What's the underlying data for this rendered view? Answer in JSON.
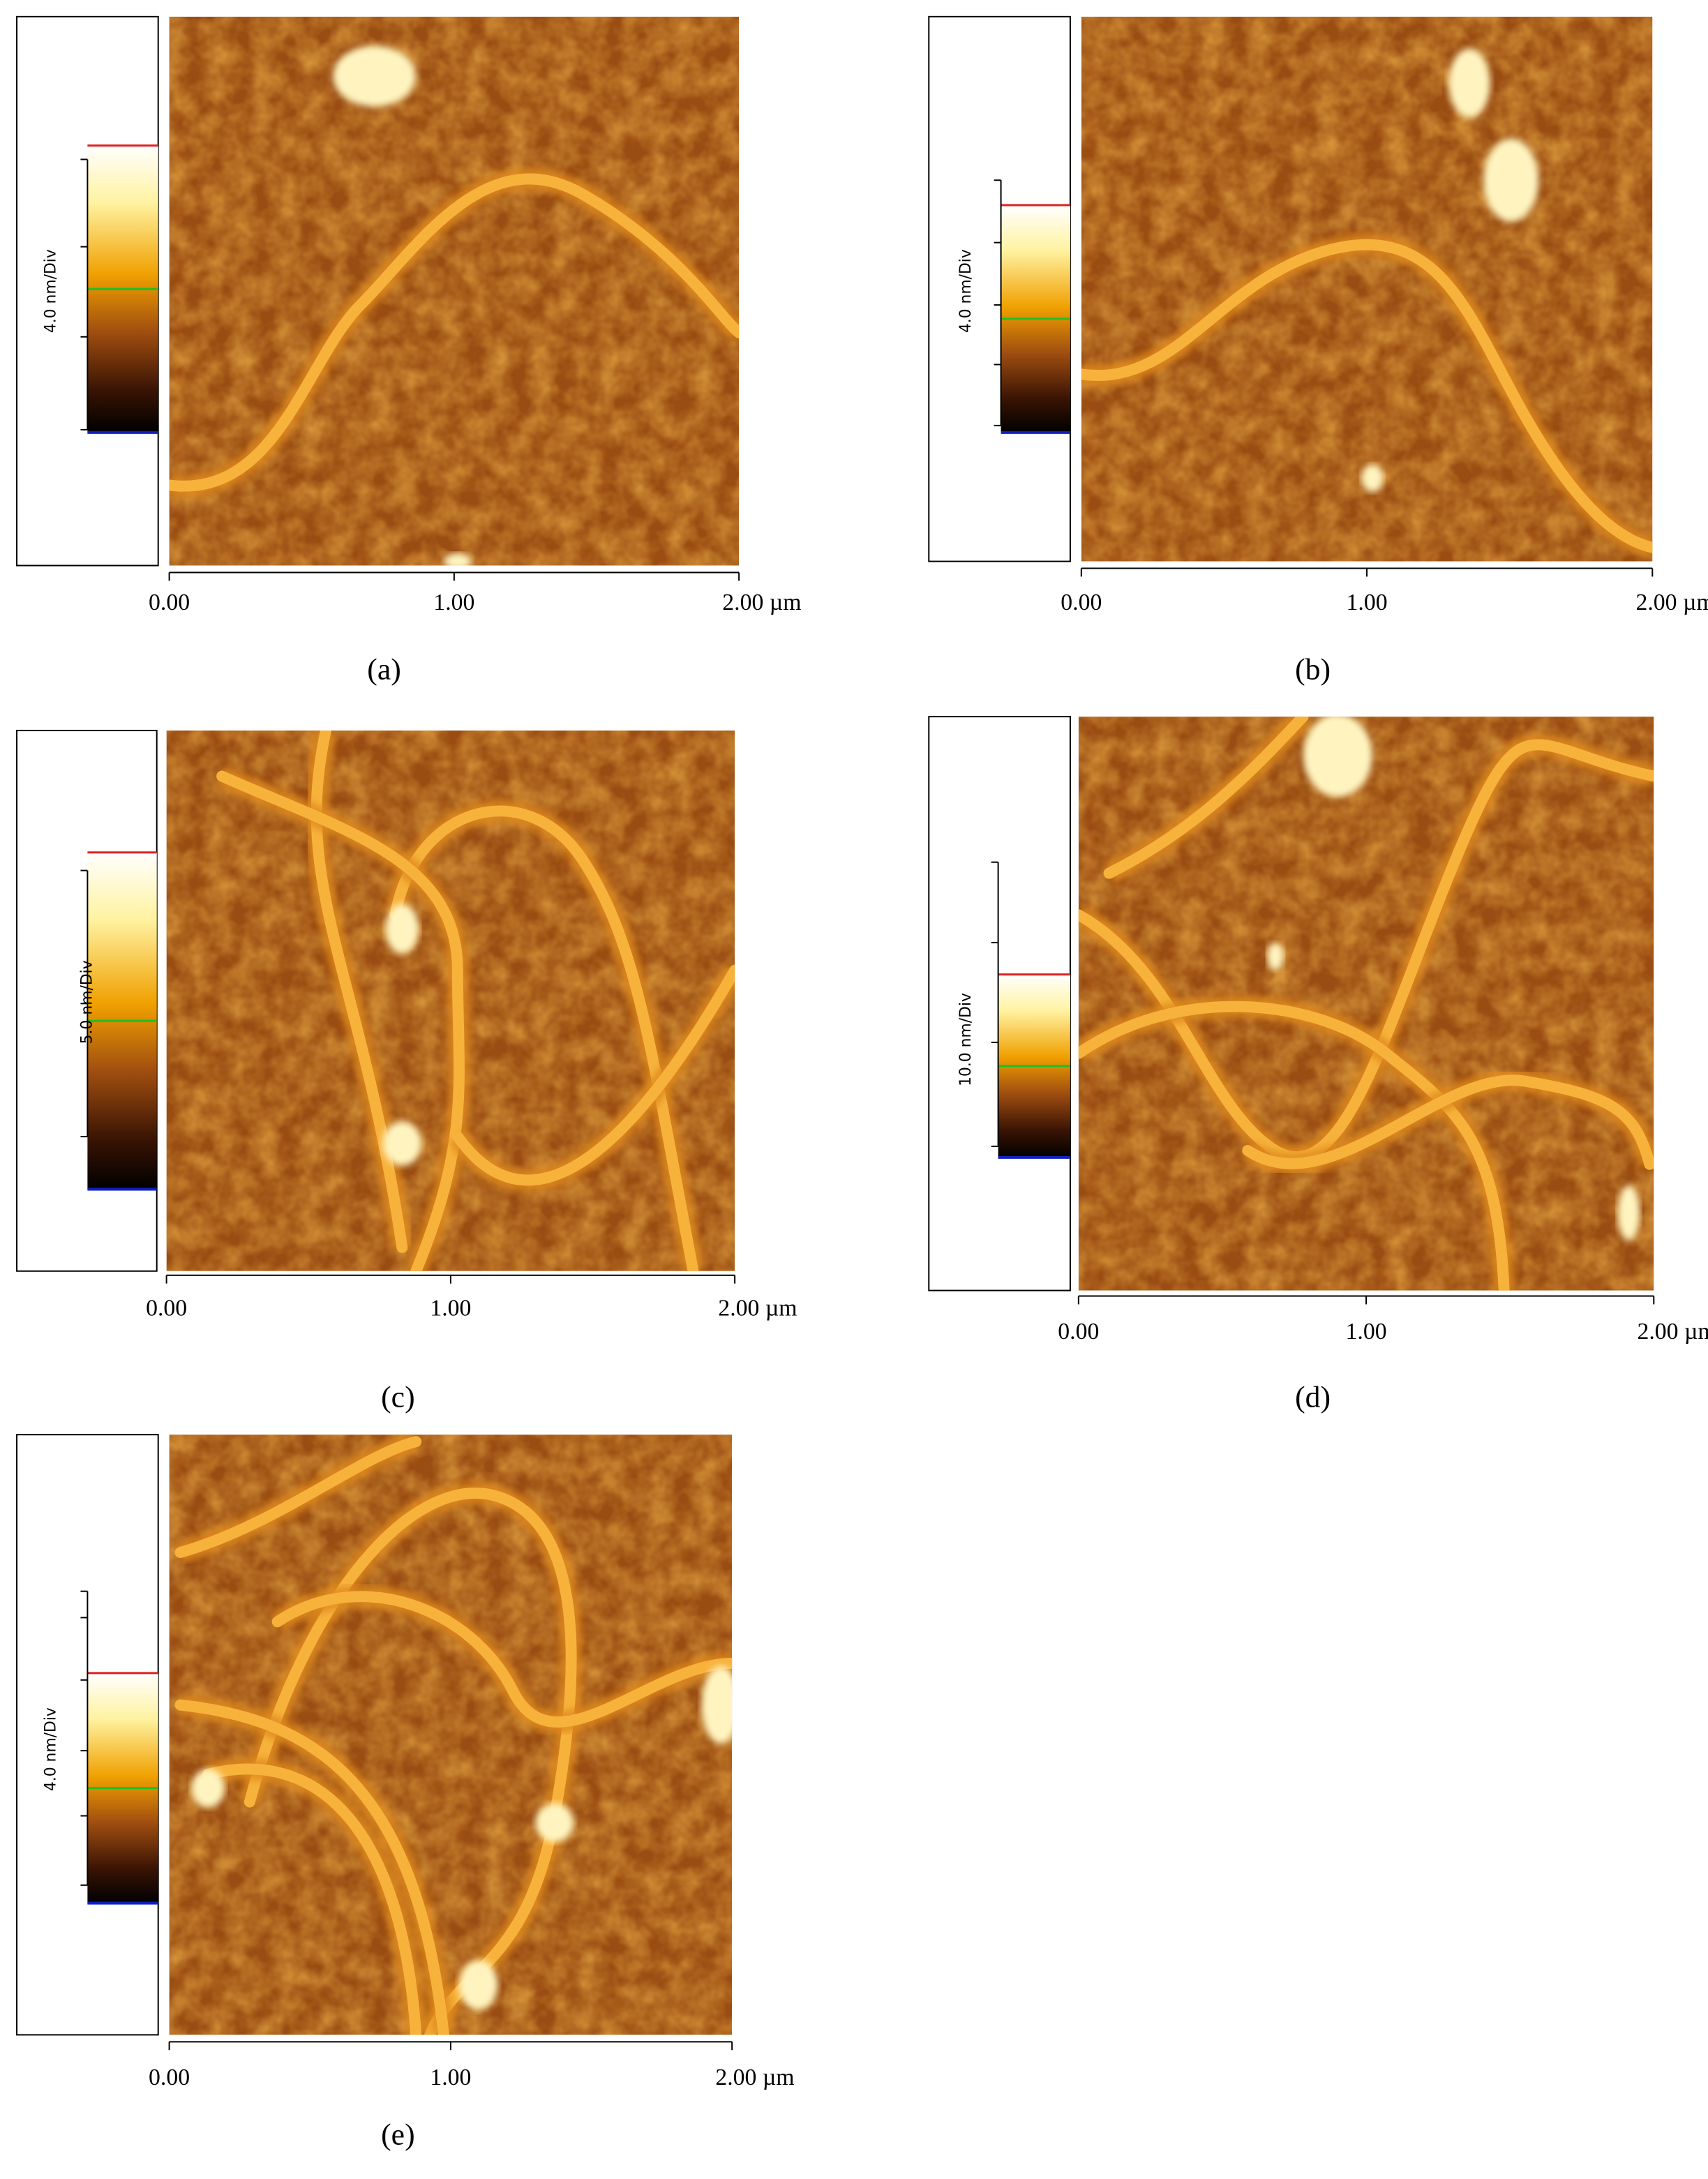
{
  "panels": [
    {
      "caption": "(a)",
      "scale_label": "4.0 nm/Div",
      "xticks": [
        "0.00",
        "1.00",
        "2.00 µm"
      ]
    },
    {
      "caption": "(b)",
      "scale_label": "4.0 nm/Div",
      "xticks": [
        "0.00",
        "1.00",
        "2.00 µm"
      ]
    },
    {
      "caption": "(c)",
      "scale_label": "5.0 nm/Div",
      "xticks": [
        "0.00",
        "1.00",
        "2.00 µm"
      ]
    },
    {
      "caption": "(d)",
      "scale_label": "10.0 nm/Div",
      "xticks": [
        "0.00",
        "1.00",
        "2.00 µm"
      ]
    },
    {
      "caption": "(e)",
      "scale_label": "4.0 nm/Div",
      "xticks": [
        "0.00",
        "1.00",
        "2.00 µm"
      ]
    }
  ]
}
